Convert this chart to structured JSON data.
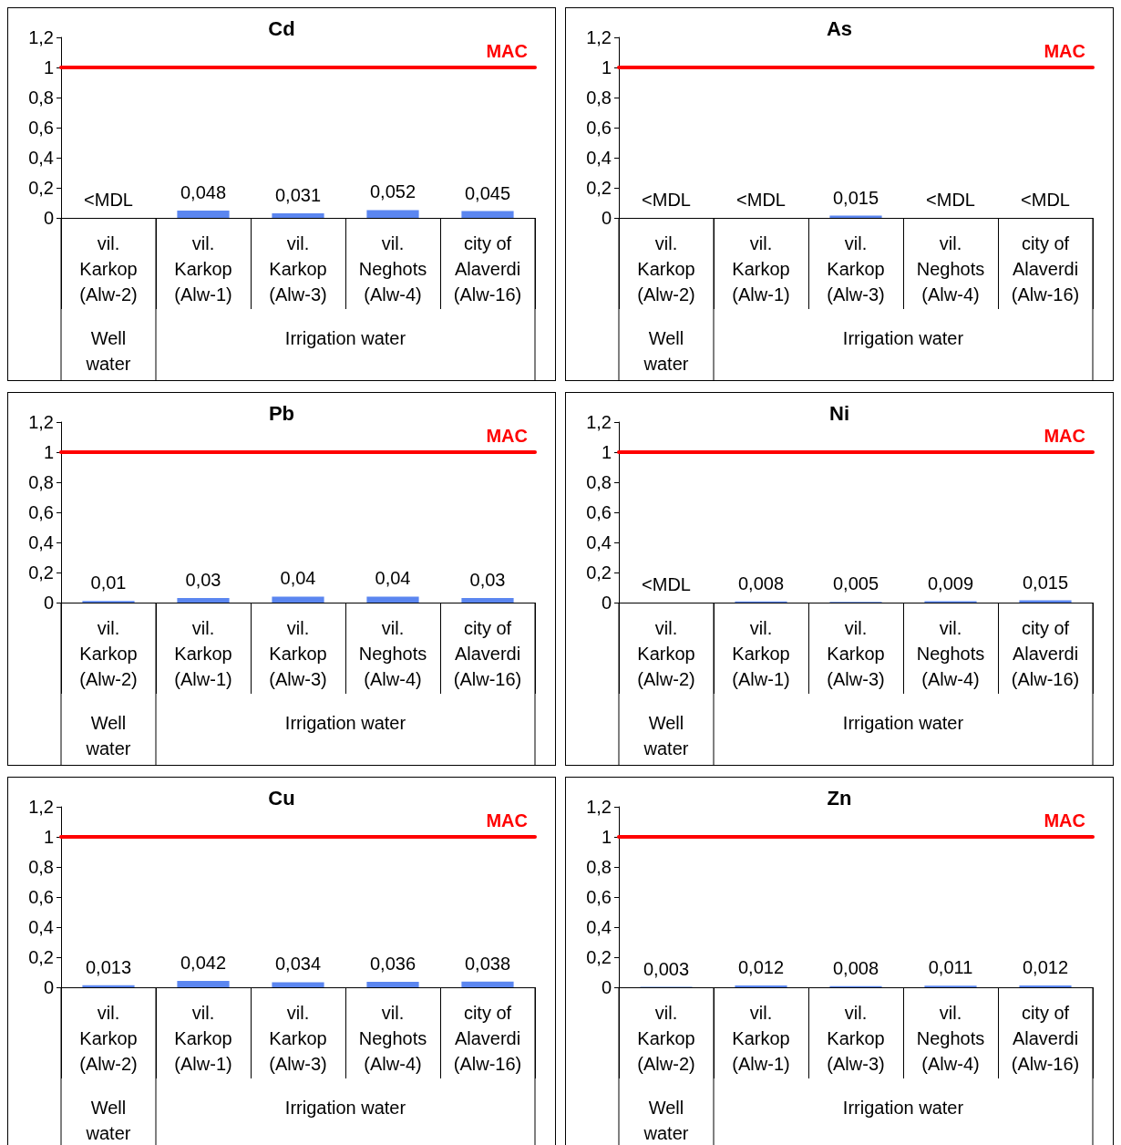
{
  "chart_data": [
    {
      "type": "bar",
      "title": "Cd",
      "categories": [
        "vil.\nKarkop\n(Alw-2)",
        "vil.\nKarkop\n(Alw-1)",
        "vil.\nKarkop\n(Alw-3)",
        "vil.\nNeghots\n(Alw-4)",
        "city of\nAlaverdi\n(Alw-16)"
      ],
      "values": [
        null,
        0.048,
        0.031,
        0.052,
        0.045
      ],
      "value_labels": [
        "<MDL",
        "0,048",
        "0,031",
        "0,052",
        "0,045"
      ],
      "color": "#5b86f0",
      "ylim": [
        0,
        1.2
      ],
      "yticks": [
        {
          "value": 0,
          "label": "0"
        },
        {
          "value": 0.2,
          "label": "0,2"
        },
        {
          "value": 0.4,
          "label": "0,4"
        },
        {
          "value": 0.6,
          "label": "0,6"
        },
        {
          "value": 0.8,
          "label": "0,8"
        },
        {
          "value": 1,
          "label": "1"
        },
        {
          "value": 1.2,
          "label": "1,2"
        }
      ],
      "ref_lines": [
        {
          "axis": "y",
          "value": 1,
          "label": "MAC",
          "color": "#ff0000",
          "line_style": "solid"
        }
      ],
      "annotations": [
        "Well\nwater",
        "Irrigation water"
      ]
    },
    {
      "type": "bar",
      "title": "As",
      "categories": [
        "vil.\nKarkop\n(Alw-2)",
        "vil.\nKarkop\n(Alw-1)",
        "vil.\nKarkop\n(Alw-3)",
        "vil.\nNeghots\n(Alw-4)",
        "city of\nAlaverdi\n(Alw-16)"
      ],
      "values": [
        null,
        null,
        0.015,
        null,
        null
      ],
      "value_labels": [
        "<MDL",
        "<MDL",
        "0,015",
        "<MDL",
        "<MDL"
      ],
      "color": "#5b86f0",
      "ylim": [
        0,
        1.2
      ],
      "yticks": [
        {
          "value": 0,
          "label": "0"
        },
        {
          "value": 0.2,
          "label": "0,2"
        },
        {
          "value": 0.4,
          "label": "0,4"
        },
        {
          "value": 0.6,
          "label": "0,6"
        },
        {
          "value": 0.8,
          "label": "0,8"
        },
        {
          "value": 1,
          "label": "1"
        },
        {
          "value": 1.2,
          "label": "1,2"
        }
      ],
      "ref_lines": [
        {
          "axis": "y",
          "value": 1,
          "label": "MAC",
          "color": "#ff0000",
          "line_style": "solid"
        }
      ],
      "annotations": [
        "Well\nwater",
        "Irrigation water"
      ]
    },
    {
      "type": "bar",
      "title": "Pb",
      "categories": [
        "vil.\nKarkop\n(Alw-2)",
        "vil.\nKarkop\n(Alw-1)",
        "vil.\nKarkop\n(Alw-3)",
        "vil.\nNeghots\n(Alw-4)",
        "city of\nAlaverdi\n(Alw-16)"
      ],
      "values": [
        0.01,
        0.03,
        0.04,
        0.04,
        0.03
      ],
      "value_labels": [
        "0,01",
        "0,03",
        "0,04",
        "0,04",
        "0,03"
      ],
      "color": "#5b86f0",
      "ylim": [
        0,
        1.2
      ],
      "yticks": [
        {
          "value": 0,
          "label": "0"
        },
        {
          "value": 0.2,
          "label": "0,2"
        },
        {
          "value": 0.4,
          "label": "0,4"
        },
        {
          "value": 0.6,
          "label": "0,6"
        },
        {
          "value": 0.8,
          "label": "0,8"
        },
        {
          "value": 1,
          "label": "1"
        },
        {
          "value": 1.2,
          "label": "1,2"
        }
      ],
      "ref_lines": [
        {
          "axis": "y",
          "value": 1,
          "label": "MAC",
          "color": "#ff0000",
          "line_style": "solid"
        }
      ],
      "annotations": [
        "Well\nwater",
        "Irrigation water"
      ]
    },
    {
      "type": "bar",
      "title": "Ni",
      "categories": [
        "vil.\nKarkop\n(Alw-2)",
        "vil.\nKarkop\n(Alw-1)",
        "vil.\nKarkop\n(Alw-3)",
        "vil.\nNeghots\n(Alw-4)",
        "city of\nAlaverdi\n(Alw-16)"
      ],
      "values": [
        null,
        0.008,
        0.005,
        0.009,
        0.015
      ],
      "value_labels": [
        "<MDL",
        "0,008",
        "0,005",
        "0,009",
        "0,015"
      ],
      "color": "#5b86f0",
      "ylim": [
        0,
        1.2
      ],
      "yticks": [
        {
          "value": 0,
          "label": "0"
        },
        {
          "value": 0.2,
          "label": "0,2"
        },
        {
          "value": 0.4,
          "label": "0,4"
        },
        {
          "value": 0.6,
          "label": "0,6"
        },
        {
          "value": 0.8,
          "label": "0,8"
        },
        {
          "value": 1,
          "label": "1"
        },
        {
          "value": 1.2,
          "label": "1,2"
        }
      ],
      "ref_lines": [
        {
          "axis": "y",
          "value": 1,
          "label": "MAC",
          "color": "#ff0000",
          "line_style": "solid"
        }
      ],
      "annotations": [
        "Well\nwater",
        "Irrigation water"
      ]
    },
    {
      "type": "bar",
      "title": "Cu",
      "categories": [
        "vil.\nKarkop\n(Alw-2)",
        "vil.\nKarkop\n(Alw-1)",
        "vil.\nKarkop\n(Alw-3)",
        "vil.\nNeghots\n(Alw-4)",
        "city of\nAlaverdi\n(Alw-16)"
      ],
      "values": [
        0.013,
        0.042,
        0.034,
        0.036,
        0.038
      ],
      "value_labels": [
        "0,013",
        "0,042",
        "0,034",
        "0,036",
        "0,038"
      ],
      "color": "#5b86f0",
      "ylim": [
        0,
        1.2
      ],
      "yticks": [
        {
          "value": 0,
          "label": "0"
        },
        {
          "value": 0.2,
          "label": "0,2"
        },
        {
          "value": 0.4,
          "label": "0,4"
        },
        {
          "value": 0.6,
          "label": "0,6"
        },
        {
          "value": 0.8,
          "label": "0,8"
        },
        {
          "value": 1,
          "label": "1"
        },
        {
          "value": 1.2,
          "label": "1,2"
        }
      ],
      "ref_lines": [
        {
          "axis": "y",
          "value": 1,
          "label": "MAC",
          "color": "#ff0000",
          "line_style": "solid"
        }
      ],
      "annotations": [
        "Well\nwater",
        "Irrigation water"
      ]
    },
    {
      "type": "bar",
      "title": "Zn",
      "categories": [
        "vil.\nKarkop\n(Alw-2)",
        "vil.\nKarkop\n(Alw-1)",
        "vil.\nKarkop\n(Alw-3)",
        "vil.\nNeghots\n(Alw-4)",
        "city of\nAlaverdi\n(Alw-16)"
      ],
      "values": [
        0.003,
        0.012,
        0.008,
        0.011,
        0.012
      ],
      "value_labels": [
        "0,003",
        "0,012",
        "0,008",
        "0,011",
        "0,012"
      ],
      "color": "#5b86f0",
      "ylim": [
        0,
        1.2
      ],
      "yticks": [
        {
          "value": 0,
          "label": "0"
        },
        {
          "value": 0.2,
          "label": "0,2"
        },
        {
          "value": 0.4,
          "label": "0,4"
        },
        {
          "value": 0.6,
          "label": "0,6"
        },
        {
          "value": 0.8,
          "label": "0,8"
        },
        {
          "value": 1,
          "label": "1"
        },
        {
          "value": 1.2,
          "label": "1,2"
        }
      ],
      "ref_lines": [
        {
          "axis": "y",
          "value": 1,
          "label": "MAC",
          "color": "#ff0000",
          "line_style": "solid"
        }
      ],
      "annotations": [
        "Well\nwater",
        "Irrigation water"
      ]
    }
  ]
}
